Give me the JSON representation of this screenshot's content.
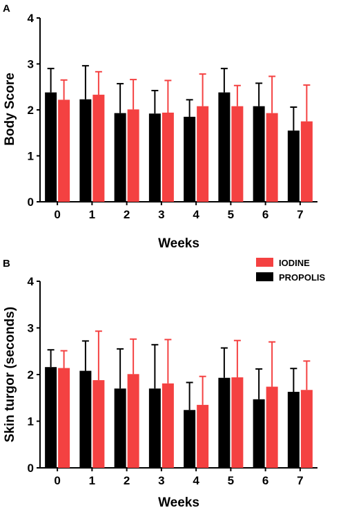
{
  "legend": {
    "items": [
      {
        "label": "IODINE",
        "color": "#f44141"
      },
      {
        "label": "PROPOLIS",
        "color": "#000000"
      }
    ]
  },
  "chart_data": [
    {
      "panel_label": "A",
      "type": "bar",
      "xlabel": "Weeks",
      "ylabel": "Body Score",
      "ylim": [
        0,
        4
      ],
      "yticks": [
        "0",
        "1",
        "2",
        "3",
        "4"
      ],
      "categories": [
        "0",
        "1",
        "2",
        "3",
        "4",
        "5",
        "6",
        "7"
      ],
      "series": [
        {
          "name": "PROPOLIS",
          "color": "#000000",
          "values": [
            2.38,
            2.23,
            1.93,
            1.92,
            1.85,
            2.38,
            2.08,
            1.55
          ],
          "error": [
            0.52,
            0.73,
            0.64,
            0.5,
            0.37,
            0.52,
            0.5,
            0.51
          ]
        },
        {
          "name": "IODINE",
          "color": "#f44141",
          "values": [
            2.22,
            2.33,
            2.01,
            1.94,
            2.08,
            2.08,
            1.93,
            1.75
          ],
          "error": [
            0.43,
            0.5,
            0.65,
            0.7,
            0.7,
            0.45,
            0.8,
            0.79
          ]
        }
      ]
    },
    {
      "panel_label": "B",
      "type": "bar",
      "xlabel": "Weeks",
      "ylabel": "Skin turgor (seconds)",
      "ylim": [
        0,
        4
      ],
      "yticks": [
        "0",
        "1",
        "2",
        "3",
        "4"
      ],
      "categories": [
        "0",
        "1",
        "2",
        "3",
        "4",
        "5",
        "6",
        "7"
      ],
      "series": [
        {
          "name": "PROPOLIS",
          "color": "#000000",
          "values": [
            2.16,
            2.08,
            1.7,
            1.7,
            1.24,
            1.93,
            1.47,
            1.63
          ],
          "error": [
            0.37,
            0.64,
            0.85,
            0.94,
            0.59,
            0.64,
            0.65,
            0.5
          ]
        },
        {
          "name": "IODINE",
          "color": "#f44141",
          "values": [
            2.14,
            1.88,
            2.01,
            1.81,
            1.35,
            1.94,
            1.74,
            1.67
          ],
          "error": [
            0.37,
            1.05,
            0.75,
            0.94,
            0.61,
            0.79,
            0.96,
            0.62
          ]
        }
      ]
    }
  ]
}
